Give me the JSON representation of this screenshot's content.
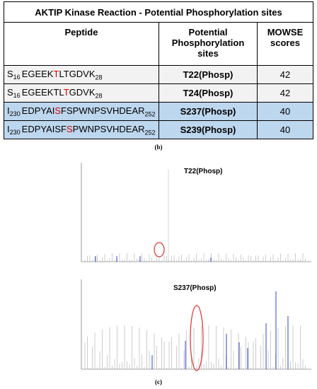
{
  "table": {
    "title": "AKTIP Kinase Reaction - Potential Phosphorylation sites",
    "headers": [
      "Peptide",
      "Potential Phosphorylation sites",
      "MOWSE scores"
    ],
    "rows": [
      {
        "peptide": {
          "first": "S",
          "start": 16,
          "before": "EGEEK",
          "site": "T",
          "after": "LTGDVK",
          "end": 28
        },
        "site": "T22(Phosp)",
        "score": 42
      },
      {
        "peptide": {
          "first": "S",
          "start": 16,
          "before": "EGEEKTL",
          "site": "T",
          "after": "GDVK",
          "end": 28
        },
        "site": "T24(Phosp)",
        "score": 42
      },
      {
        "peptide": {
          "first": "I",
          "start": 230,
          "before": "EDPYAI",
          "site": "S",
          "after": "FSPWNPSVHDEAR",
          "end": 252
        },
        "site": "S237(Phosp)",
        "score": 40
      },
      {
        "peptide": {
          "first": "I",
          "start": 230,
          "before": "EDPYAISF",
          "site": "S",
          "after": "PWNPSVHDEAR",
          "end": 252
        },
        "site": "S239(Phosp)",
        "score": 40
      }
    ]
  },
  "caption_b": "(b)",
  "spectra": [
    {
      "label": "T22(Phosp)"
    },
    {
      "label": "S237(Phosp)"
    }
  ],
  "caption_c": "(c)"
}
